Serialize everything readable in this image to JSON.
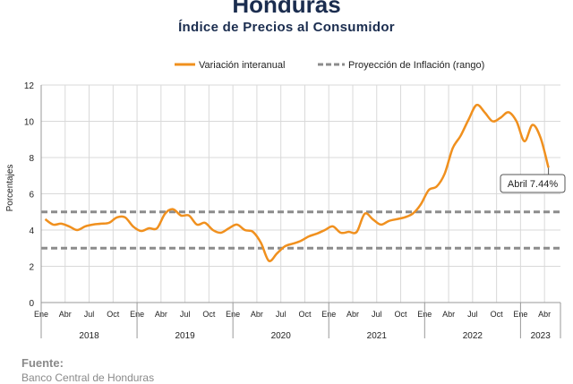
{
  "title": "Honduras",
  "subtitle": "Índice de Precios al Consumidor",
  "source_label": "Fuente:",
  "source_text": "Banco Central de Honduras",
  "colors": {
    "series": "#f0901e",
    "band": "#8c8c8c",
    "grid": "#d9d9d9",
    "title": "#1b2d4f"
  },
  "chart_data": {
    "type": "line",
    "ylabel": "Porcentajes",
    "ylim": [
      0,
      12
    ],
    "yticks": [
      0,
      2,
      4,
      6,
      8,
      10,
      12
    ],
    "grid": true,
    "legend_position": "top",
    "month_ticks": [
      "Ene",
      "Abr",
      "Jul",
      "Oct"
    ],
    "years": [
      "2018",
      "2019",
      "2020",
      "2021",
      "2022",
      "2023"
    ],
    "last_year_months": [
      "Ene",
      "Abr"
    ],
    "series": [
      {
        "name": "Variación interanual",
        "start": "2018-01",
        "values": [
          4.6,
          4.3,
          4.35,
          4.2,
          4.0,
          4.2,
          4.3,
          4.35,
          4.4,
          4.7,
          4.7,
          4.2,
          3.95,
          4.1,
          4.1,
          4.9,
          5.15,
          4.8,
          4.8,
          4.3,
          4.4,
          4.0,
          3.85,
          4.1,
          4.3,
          4.0,
          3.9,
          3.3,
          2.3,
          2.7,
          3.1,
          3.25,
          3.4,
          3.65,
          3.8,
          4.0,
          4.2,
          3.85,
          3.9,
          3.9,
          4.9,
          4.6,
          4.3,
          4.5,
          4.6,
          4.7,
          4.9,
          5.4,
          6.2,
          6.4,
          7.1,
          8.5,
          9.2,
          10.1,
          10.9,
          10.5,
          10.0,
          10.2,
          10.5,
          10.0,
          8.9,
          9.8,
          9.1,
          7.44
        ]
      },
      {
        "name": "Proyección de Inflación (rango)",
        "band": [
          3,
          5
        ]
      }
    ],
    "annotation": "Abril 7.44%"
  }
}
